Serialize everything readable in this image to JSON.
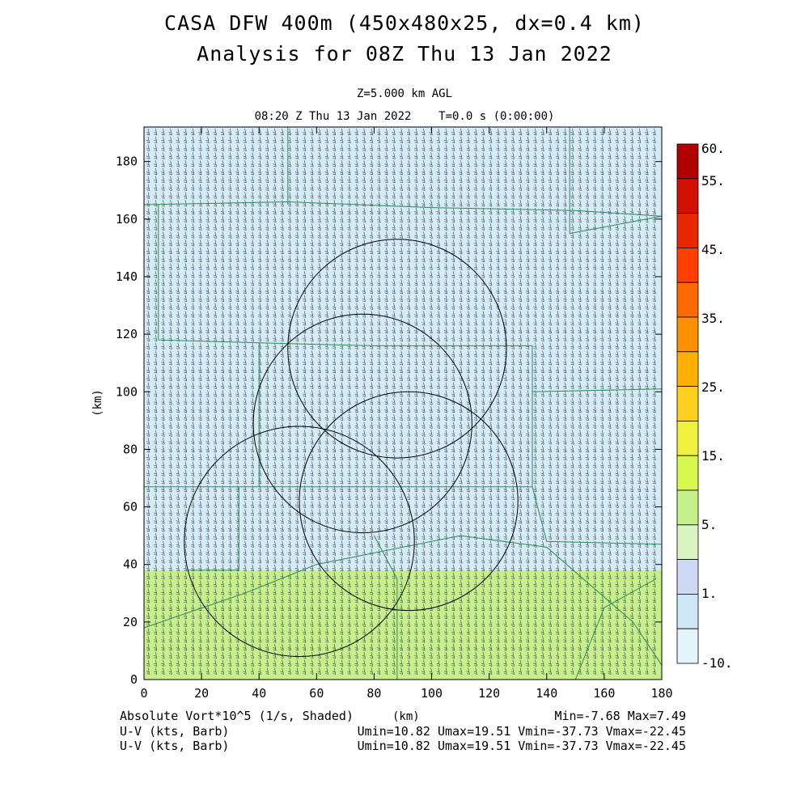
{
  "header": {
    "title_line1": "CASA DFW 400m (450x480x25, dx=0.4 km)",
    "title_line2": "Analysis for 08Z Thu 13 Jan 2022",
    "level": "Z=5.000 km AGL",
    "time": "08:20 Z Thu 13 Jan 2022    T=0.0 s (0:00:00)"
  },
  "chart_data": {
    "type": "heatmap",
    "title": "Absolute Vort*10^5 (1/s, Shaded)",
    "xlabel": "(km)",
    "ylabel": "(km)",
    "xlim": [
      0,
      180
    ],
    "ylim": [
      0,
      192
    ],
    "x_ticks": [
      0,
      20,
      40,
      60,
      80,
      100,
      120,
      140,
      160,
      180
    ],
    "y_ticks": [
      0,
      20,
      40,
      60,
      80,
      100,
      120,
      140,
      160,
      180
    ],
    "grid": false,
    "shaded_regions": [
      {
        "y_from": 0,
        "y_to": 38,
        "value_band": "5 to 10",
        "color": "#c6f08c"
      },
      {
        "y_from": 38,
        "y_to": 192,
        "value_band": "-10 to 0",
        "color": "#d4ecf8"
      }
    ],
    "radar_rings": [
      {
        "cx": 88,
        "cy": 115,
        "r": 38
      },
      {
        "cx": 76,
        "cy": 89,
        "r": 38
      },
      {
        "cx": 92,
        "cy": 62,
        "r": 38
      },
      {
        "cx": 54,
        "cy": 48,
        "r": 40
      }
    ],
    "colorbar": {
      "labels": [
        "60.",
        "55.",
        "45.",
        "35.",
        "25.",
        "15.",
        "5.",
        "1.",
        "-10."
      ],
      "colors": [
        "#b00000",
        "#d01000",
        "#e82800",
        "#ff4000",
        "#ff6a00",
        "#ff9000",
        "#ffb000",
        "#ffd020",
        "#f0f040",
        "#d8f850",
        "#c6f08c",
        "#d8f4c0",
        "#cfd8f4",
        "#cfe6f6",
        "#e4f4fc"
      ]
    },
    "stats": {
      "min": "-7.68",
      "max": "7.49"
    }
  },
  "footer": {
    "var1": "Absolute Vort*10^5 (1/s, Shaded)",
    "xunit": "(km)",
    "minmax": "Min=-7.68 Max=7.49",
    "var2": "U-V (kts, Barb)",
    "stats2": "Umin=10.82 Umax=19.51 Vmin=-37.73 Vmax=-22.45",
    "var3": "U-V (kts, Barb)",
    "stats3": "Umin=10.82 Umax=19.51 Vmin=-37.73 Vmax=-22.45"
  }
}
